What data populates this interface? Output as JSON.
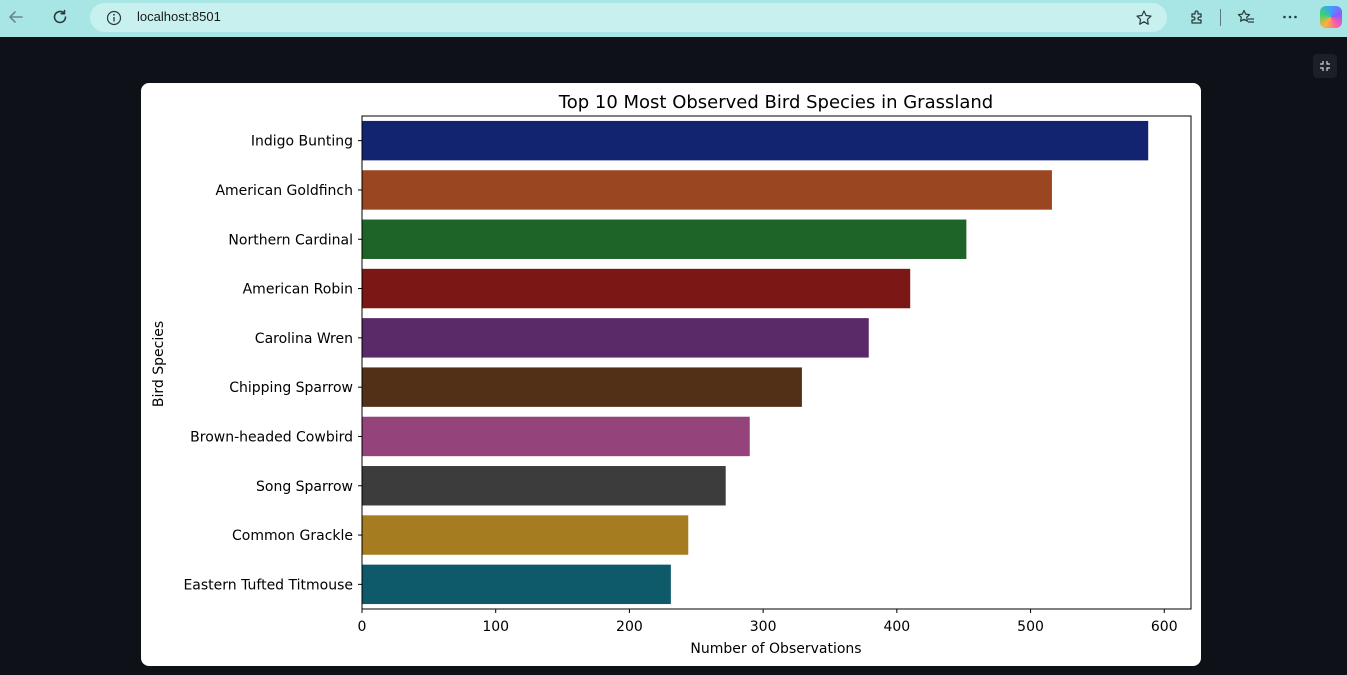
{
  "browser": {
    "url": "localhost:8501",
    "icons": {
      "back": "back-arrow-icon",
      "reload": "reload-icon",
      "site_info": "info-icon",
      "favorite": "star-icon",
      "extensions": "puzzle-icon",
      "favorites": "favorites-icon",
      "menu": "more-icon",
      "copilot": "copilot-icon"
    }
  },
  "page": {
    "background": "#0e1117",
    "fullscreen_icon": "fullscreen-icon"
  },
  "chart_data": {
    "type": "bar",
    "orientation": "horizontal",
    "title": "Top 10 Most Observed Bird Species in Grassland",
    "xlabel": "Number of Observations",
    "ylabel": "Bird Species",
    "xlim": [
      0,
      620
    ],
    "xticks": [
      0,
      100,
      200,
      300,
      400,
      500,
      600
    ],
    "grid": false,
    "categories": [
      "Indigo Bunting",
      "American Goldfinch",
      "Northern Cardinal",
      "American Robin",
      "Carolina Wren",
      "Chipping Sparrow",
      "Brown-headed Cowbird",
      "Song Sparrow",
      "Common Grackle",
      "Eastern Tufted Titmouse"
    ],
    "values": [
      588,
      516,
      452,
      410,
      379,
      329,
      290,
      272,
      244,
      231
    ],
    "colors": [
      "#12236f",
      "#994621",
      "#1e6428",
      "#7b1715",
      "#5a2968",
      "#522f17",
      "#94447b",
      "#3c3c3c",
      "#a57c1f",
      "#0f5a6a"
    ]
  }
}
